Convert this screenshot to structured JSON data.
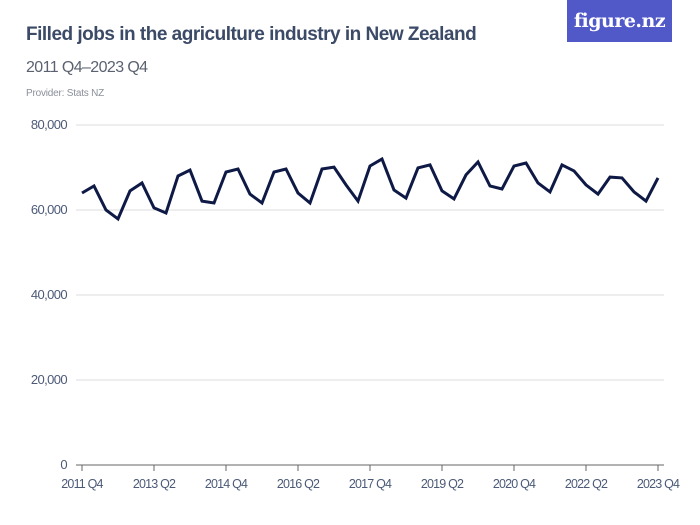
{
  "header": {
    "title": "Filled jobs in the agriculture industry in New Zealand",
    "subtitle": "2011 Q4–2023 Q4",
    "provider": "Provider: Stats NZ",
    "logo_text": "figure.nz"
  },
  "colors": {
    "line": "#0e1a45",
    "logo_bg": "#5158c8",
    "grid": "#dddddd",
    "axis": "#666666"
  },
  "chart_data": {
    "type": "line",
    "title": "Filled jobs in the agriculture industry in New Zealand",
    "subtitle": "2011 Q4–2023 Q4",
    "xlabel": "",
    "ylabel": "",
    "ylim": [
      0,
      80000
    ],
    "grid": true,
    "y_ticks": [
      0,
      20000,
      40000,
      60000,
      80000
    ],
    "y_tick_labels": [
      "0",
      "20,000",
      "40,000",
      "60,000",
      "80,000"
    ],
    "x_tick_labels": [
      "2011 Q4",
      "2013 Q2",
      "2014 Q4",
      "2016 Q2",
      "2017 Q4",
      "2019 Q2",
      "2020 Q4",
      "2022 Q2",
      "2023 Q4"
    ],
    "x_tick_every": 6,
    "series": [
      {
        "name": "Filled jobs",
        "start": "2011 Q4",
        "end": "2023 Q4",
        "values": [
          64000,
          65650,
          60000,
          57900,
          64500,
          66350,
          60500,
          59300,
          68000,
          69400,
          62100,
          61650,
          68950,
          69650,
          63750,
          61650,
          68950,
          69650,
          64000,
          61650,
          69650,
          70100,
          65900,
          62100,
          70350,
          72000,
          64700,
          62800,
          69900,
          70600,
          64500,
          62600,
          68250,
          71300,
          65650,
          64950,
          70350,
          71050,
          66350,
          64250,
          70600,
          69200,
          65900,
          63750,
          67750,
          67550,
          64250,
          62100,
          67550
        ]
      }
    ]
  }
}
